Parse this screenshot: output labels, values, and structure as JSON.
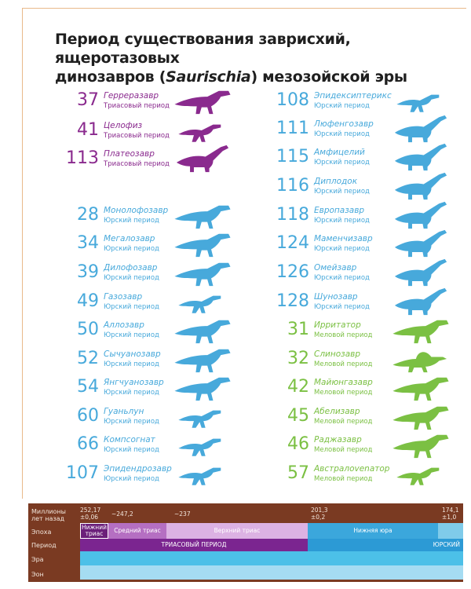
{
  "title": {
    "line1": "Период существования заврисхий, ящеротазовых",
    "line2_prefix": "динозавров (",
    "line2_italic": "Saurischia",
    "line2_suffix": ") мезозойской эры"
  },
  "colors": {
    "triassic": "#8a2a8e",
    "jurassic": "#47a9db",
    "cretaceous": "#7bc043"
  },
  "left_column": [
    {
      "num": "37",
      "name": "Герреразавр",
      "period": "Триасовый период",
      "era": "triassic",
      "icon": "herrerasaurus-icon"
    },
    {
      "num": "41",
      "name": "Целофиз",
      "period": "Триасовый период",
      "era": "triassic",
      "icon": "coelophysis-icon"
    },
    {
      "num": "113",
      "name": "Платеозавр",
      "period": "Триасовый период",
      "era": "triassic",
      "icon": "plateosaurus-icon"
    },
    {
      "num": "28",
      "name": "Монолофозавр",
      "period": "Юрский период",
      "era": "jurassic",
      "icon": "monolophosaurus-icon"
    },
    {
      "num": "34",
      "name": "Мегалозавр",
      "period": "Юрский период",
      "era": "jurassic",
      "icon": "megalosaurus-icon"
    },
    {
      "num": "39",
      "name": "Дилофозавр",
      "period": "Юрский период",
      "era": "jurassic",
      "icon": "dilophosaurus-icon"
    },
    {
      "num": "49",
      "name": "Газозавр",
      "period": "Юрский период",
      "era": "jurassic",
      "icon": "gasosaurus-icon"
    },
    {
      "num": "50",
      "name": "Аллозавр",
      "period": "Юрский период",
      "era": "jurassic",
      "icon": "allosaurus-icon"
    },
    {
      "num": "52",
      "name": "Сычуанозавр",
      "period": "Юрский период",
      "era": "jurassic",
      "icon": "szechuanosaurus-icon"
    },
    {
      "num": "54",
      "name": "Янгчуанозавр",
      "period": "Юрский период",
      "era": "jurassic",
      "icon": "yangchuanosaurus-icon"
    },
    {
      "num": "60",
      "name": "Гуаньлун",
      "period": "Юрский период",
      "era": "jurassic",
      "icon": "guanlong-icon"
    },
    {
      "num": "66",
      "name": "Компсогнат",
      "period": "Юрский период",
      "era": "jurassic",
      "icon": "compsognathus-icon"
    },
    {
      "num": "107",
      "name": "Эпидендрозавр",
      "period": "Юрский период",
      "era": "jurassic",
      "icon": "epidendrosaurus-icon"
    }
  ],
  "right_column": [
    {
      "num": "108",
      "name": "Эпидексиптерикс",
      "period": "Юрский период",
      "era": "jurassic",
      "icon": "epidexipteryx-icon"
    },
    {
      "num": "111",
      "name": "Люфенгозавр",
      "period": "Юрский период",
      "era": "jurassic",
      "icon": "lufengosaurus-icon"
    },
    {
      "num": "115",
      "name": "Амфицелий",
      "period": "Юрский период",
      "era": "jurassic",
      "icon": "amphicoelias-icon"
    },
    {
      "num": "116",
      "name": "Диплодок",
      "period": "Юрский период",
      "era": "jurassic",
      "icon": "diplodocus-icon"
    },
    {
      "num": "118",
      "name": "Европазавр",
      "period": "Юрский период",
      "era": "jurassic",
      "icon": "europasaurus-icon"
    },
    {
      "num": "124",
      "name": "Маменчизавр",
      "period": "Юрский период",
      "era": "jurassic",
      "icon": "mamenchisaurus-icon"
    },
    {
      "num": "126",
      "name": "Омейзавр",
      "period": "Юрский период",
      "era": "jurassic",
      "icon": "omeisaurus-icon"
    },
    {
      "num": "128",
      "name": "Шунозавр",
      "period": "Юрский период",
      "era": "jurassic",
      "icon": "shunosaurus-icon"
    },
    {
      "num": "31",
      "name": "Ирритатор",
      "period": "Меловой период",
      "era": "cretaceous",
      "icon": "irritator-icon"
    },
    {
      "num": "32",
      "name": "Слинозавр",
      "period": "Меловой период",
      "era": "cretaceous",
      "icon": "spinosaurus-icon"
    },
    {
      "num": "42",
      "name": "Майюнгазавр",
      "period": "Меловой период",
      "era": "cretaceous",
      "icon": "majungasaurus-icon"
    },
    {
      "num": "45",
      "name": "Абелизавр",
      "period": "Меловой период",
      "era": "cretaceous",
      "icon": "abelisaurus-icon"
    },
    {
      "num": "46",
      "name": "Раджазавр",
      "period": "Меловой период",
      "era": "cretaceous",
      "icon": "rajasaurus-icon"
    },
    {
      "num": "57",
      "name": "Австралоvenатор",
      "period": "Меловой период",
      "era": "cretaceous",
      "icon": "australovenator-icon"
    }
  ],
  "timeline": {
    "row_labels": {
      "mya": "Миллионы\nлет назад",
      "epoch": "Эпоха",
      "period": "Период",
      "era": "Эра",
      "eon": "Эон"
    },
    "mya_values": {
      "v1": "252,17",
      "v1b": "±0,06",
      "v2": "~247,2",
      "v3": "~237",
      "v4": "201,3",
      "v4b": "±0,2",
      "v5": "174,1",
      "v5b": "±1,0"
    },
    "epochs": {
      "lower_triassic": "Нижний\nтриас",
      "middle_triassic": "Средний триас",
      "upper_triassic": "Верхний триас",
      "lower_jurassic": "Нижняя юра"
    },
    "periods": {
      "triassic": "ТРИАСОВЫЙ ПЕРИОД",
      "jurassic": "ЮРСКИЙ"
    }
  }
}
